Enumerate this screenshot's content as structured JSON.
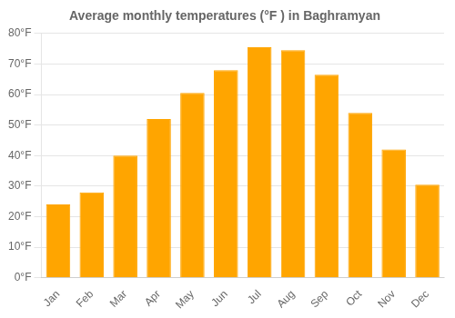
{
  "chart_data": {
    "type": "bar",
    "title": "Average monthly temperatures (°F ) in Baghramyan",
    "categories": [
      "Jan",
      "Feb",
      "Mar",
      "Apr",
      "May",
      "Jun",
      "Jul",
      "Aug",
      "Sep",
      "Oct",
      "Nov",
      "Dec"
    ],
    "values": [
      24,
      28,
      40,
      52,
      60.5,
      68,
      75.5,
      74.5,
      66.5,
      54,
      42,
      30.5
    ],
    "color": "#FFA500",
    "ylim": [
      0,
      80
    ],
    "yticks": [
      {
        "value": 0,
        "label": "0°F"
      },
      {
        "value": 10,
        "label": "10°F"
      },
      {
        "value": 20,
        "label": "20°F"
      },
      {
        "value": 30,
        "label": "30°F"
      },
      {
        "value": 40,
        "label": "40°F"
      },
      {
        "value": 50,
        "label": "50°F"
      },
      {
        "value": 60,
        "label": "60°F"
      },
      {
        "value": 70,
        "label": "70°F"
      },
      {
        "value": 80,
        "label": "80°F"
      }
    ],
    "grid": true
  }
}
